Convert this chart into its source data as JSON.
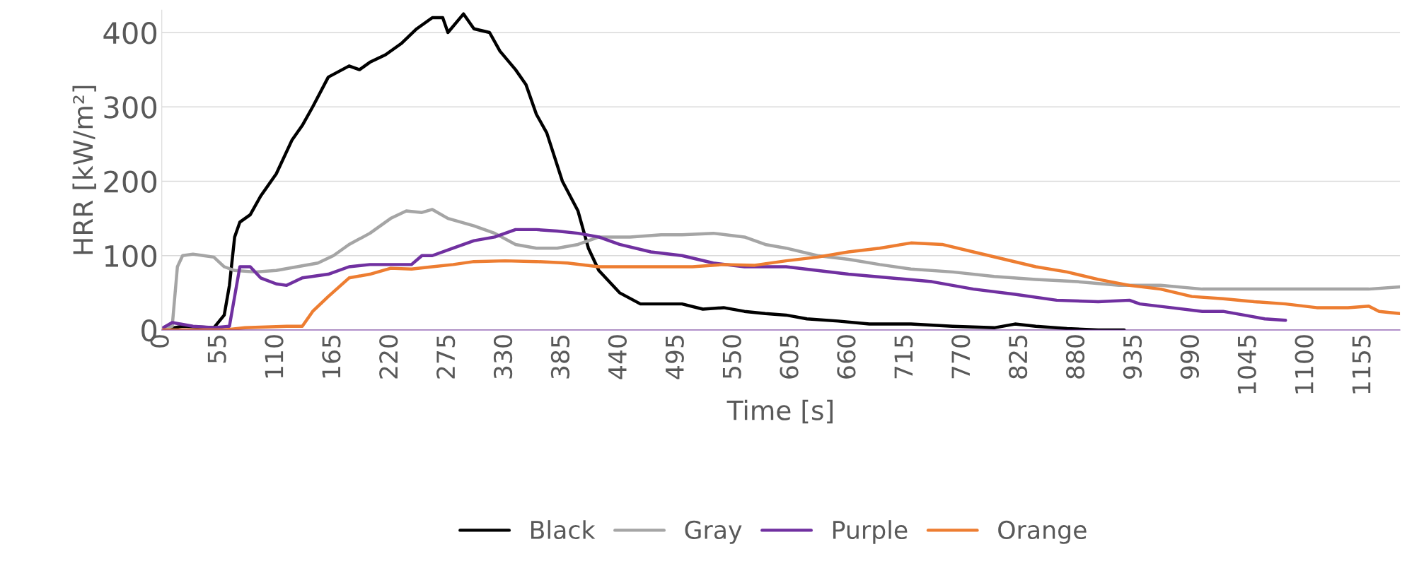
{
  "chart_data": {
    "type": "line",
    "xlabel": "Time [s]",
    "ylabel": "HRR [kW/m²]",
    "xlim": [
      0,
      1190
    ],
    "xticks": [
      0,
      55,
      110,
      165,
      220,
      275,
      330,
      385,
      440,
      495,
      550,
      605,
      660,
      715,
      770,
      825,
      880,
      935,
      990,
      1045,
      1100,
      1155
    ],
    "ylim": [
      0,
      430
    ],
    "yticks": [
      0,
      100,
      200,
      300,
      400
    ],
    "grid": "y",
    "legend": "bottom",
    "marker": "none",
    "line_style": "solid",
    "series": [
      {
        "name": "Black",
        "color": "#000000",
        "x": [
          0,
          20,
          50,
          60,
          65,
          70,
          75,
          85,
          95,
          110,
          125,
          135,
          145,
          160,
          180,
          190,
          200,
          215,
          230,
          245,
          260,
          270,
          275,
          290,
          300,
          315,
          325,
          340,
          350,
          360,
          370,
          385,
          400,
          410,
          420,
          440,
          460,
          480,
          500,
          520,
          540,
          560,
          580,
          600,
          620,
          650,
          680,
          720,
          760,
          800,
          820,
          840,
          870,
          900,
          925
        ],
        "values": [
          0,
          5,
          3,
          20,
          60,
          125,
          145,
          155,
          180,
          210,
          255,
          275,
          300,
          340,
          355,
          350,
          360,
          370,
          385,
          405,
          420,
          420,
          400,
          425,
          405,
          400,
          375,
          350,
          330,
          290,
          265,
          200,
          160,
          110,
          80,
          50,
          35,
          35,
          35,
          28,
          30,
          25,
          22,
          20,
          15,
          12,
          8,
          8,
          5,
          3,
          8,
          5,
          2,
          0,
          0
        ]
      },
      {
        "name": "Gray",
        "color": "#a5a5a5",
        "x": [
          0,
          10,
          15,
          20,
          30,
          40,
          50,
          60,
          70,
          90,
          110,
          130,
          150,
          165,
          180,
          200,
          220,
          235,
          250,
          260,
          275,
          300,
          320,
          340,
          360,
          380,
          400,
          420,
          450,
          480,
          500,
          530,
          560,
          580,
          600,
          630,
          660,
          690,
          720,
          760,
          800,
          840,
          880,
          920,
          960,
          1000,
          1040,
          1080,
          1120,
          1160,
          1190
        ],
        "values": [
          0,
          5,
          85,
          100,
          102,
          100,
          98,
          85,
          80,
          78,
          80,
          85,
          90,
          100,
          115,
          130,
          150,
          160,
          158,
          162,
          150,
          140,
          130,
          115,
          110,
          110,
          115,
          125,
          125,
          128,
          128,
          130,
          125,
          115,
          110,
          100,
          95,
          88,
          82,
          78,
          72,
          68,
          65,
          60,
          60,
          55,
          55,
          55,
          55,
          55,
          58
        ]
      },
      {
        "name": "Purple",
        "color": "#7030a0",
        "x": [
          0,
          10,
          30,
          50,
          65,
          75,
          85,
          95,
          110,
          120,
          135,
          160,
          180,
          200,
          220,
          240,
          250,
          260,
          280,
          300,
          320,
          340,
          360,
          380,
          400,
          420,
          440,
          470,
          500,
          530,
          560,
          600,
          630,
          660,
          700,
          740,
          780,
          820,
          860,
          900,
          930,
          940,
          970,
          1000,
          1020,
          1040,
          1060,
          1080
        ],
        "values": [
          2,
          10,
          5,
          3,
          5,
          85,
          85,
          70,
          62,
          60,
          70,
          75,
          85,
          88,
          88,
          88,
          100,
          100,
          110,
          120,
          125,
          135,
          135,
          133,
          130,
          125,
          115,
          105,
          100,
          90,
          85,
          85,
          80,
          75,
          70,
          65,
          55,
          48,
          40,
          38,
          40,
          35,
          30,
          25,
          25,
          20,
          15,
          13
        ]
      },
      {
        "name": "Orange",
        "color": "#ed7d31",
        "x": [
          0,
          60,
          80,
          120,
          135,
          145,
          160,
          180,
          200,
          220,
          240,
          260,
          280,
          300,
          330,
          360,
          390,
          420,
          450,
          480,
          510,
          540,
          570,
          600,
          630,
          660,
          690,
          720,
          750,
          780,
          810,
          840,
          870,
          900,
          930,
          960,
          990,
          1020,
          1050,
          1080,
          1110,
          1140,
          1160,
          1170,
          1190
        ],
        "values": [
          0,
          0,
          3,
          5,
          5,
          25,
          45,
          70,
          75,
          83,
          82,
          85,
          88,
          92,
          93,
          92,
          90,
          85,
          85,
          85,
          85,
          88,
          87,
          93,
          98,
          105,
          110,
          117,
          115,
          105,
          95,
          85,
          78,
          68,
          60,
          55,
          45,
          42,
          38,
          35,
          30,
          30,
          32,
          25,
          22
        ]
      }
    ]
  }
}
